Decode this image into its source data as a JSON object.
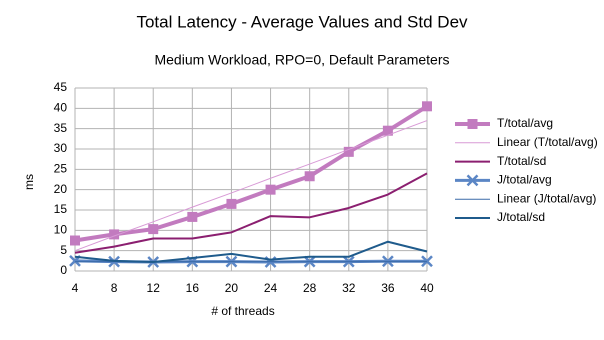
{
  "chart_data": {
    "type": "line",
    "title": "Total Latency - Average Values and Std Dev",
    "subtitle": "Medium Workload, RPO=0, Default Parameters",
    "x_label": "# of threads",
    "y_label": "ms",
    "x": [
      4,
      8,
      12,
      16,
      20,
      24,
      28,
      32,
      36,
      40
    ],
    "xlim": [
      4,
      40
    ],
    "xticks": [
      4,
      8,
      12,
      16,
      20,
      24,
      28,
      32,
      36,
      40
    ],
    "ylim": [
      0,
      45
    ],
    "yticks": [
      0,
      5,
      10,
      15,
      20,
      25,
      30,
      35,
      40,
      45
    ],
    "grid": true,
    "legend": "right",
    "series": [
      {
        "name": "T/total/avg",
        "color": "#c27bbf",
        "width": 4,
        "marker": "square",
        "values": [
          7.5,
          9,
          10.3,
          13.3,
          16.5,
          20,
          23.3,
          29.3,
          34.5,
          40.5
        ]
      },
      {
        "name": "Linear (T/total/avg)",
        "color": "#d89ad6",
        "width": 1,
        "marker": null,
        "values": [
          5,
          8.6,
          12.1,
          15.7,
          19.2,
          22.8,
          26.3,
          29.9,
          33.4,
          37
        ]
      },
      {
        "name": "T/total/sd",
        "color": "#8b1f70",
        "width": 2,
        "marker": null,
        "values": [
          4.5,
          6,
          8,
          8,
          9.5,
          13.5,
          13.2,
          15.5,
          18.8,
          24
        ]
      },
      {
        "name": "J/total/avg",
        "color": "#5b86c5",
        "width": 3,
        "marker": "x",
        "values": [
          2.5,
          2.3,
          2.2,
          2.3,
          2.3,
          2.2,
          2.3,
          2.3,
          2.4,
          2.4
        ]
      },
      {
        "name": "Linear (J/total/avg)",
        "color": "#3a6aa8",
        "width": 1,
        "marker": null,
        "values": [
          2.3,
          2.3,
          2.3,
          2.3,
          2.3,
          2.3,
          2.3,
          2.3,
          2.3,
          2.3
        ]
      },
      {
        "name": "J/total/sd",
        "color": "#1f5b8c",
        "width": 2,
        "marker": null,
        "values": [
          3.5,
          2.5,
          2.2,
          3.2,
          4.2,
          2.8,
          3.5,
          3.5,
          7.2,
          4.8
        ]
      }
    ]
  }
}
